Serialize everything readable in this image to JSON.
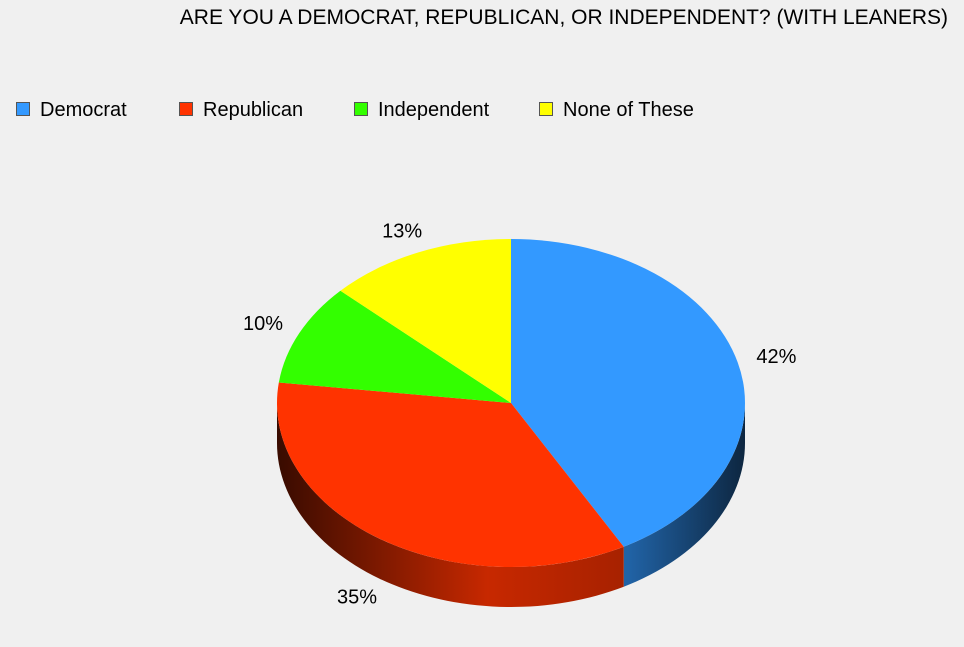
{
  "chart_data": {
    "type": "pie",
    "title": "ARE YOU A DEMOCRAT, REPUBLICAN, OR INDEPENDENT? (WITH LEANERS)",
    "categories": [
      "Democrat",
      "Republican",
      "Independent",
      "None of These"
    ],
    "values": [
      42,
      35,
      10,
      13
    ],
    "labels": [
      "42%",
      "35%",
      "10%",
      "13%"
    ],
    "colors": [
      "#3399ff",
      "#ff3300",
      "#33ff00",
      "#ffff00"
    ],
    "legend_position": "top-left",
    "style": "3d"
  }
}
